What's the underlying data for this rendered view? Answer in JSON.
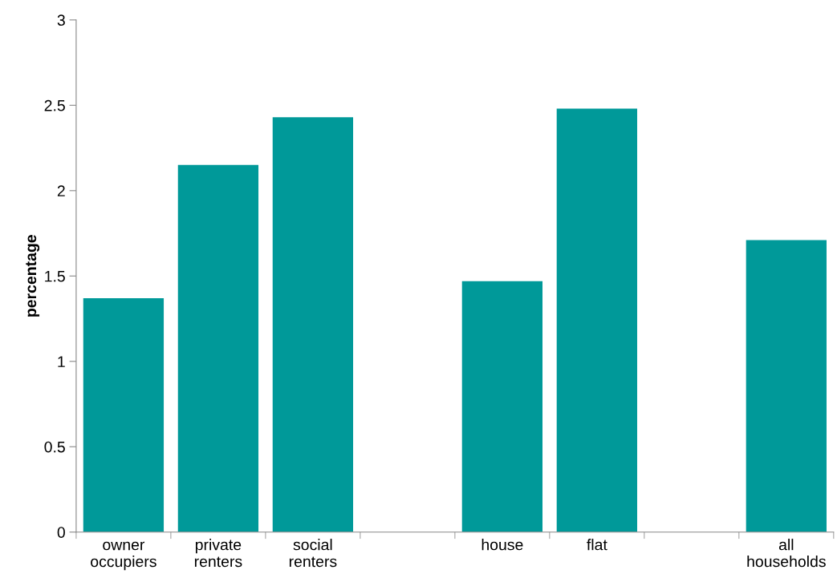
{
  "chart_data": {
    "type": "bar",
    "ylabel": "percentage",
    "categories": [
      "owner\noccupiers",
      "private\nrenters",
      "social\nrenters",
      null,
      "house",
      "flat",
      null,
      "all\nhouseholds"
    ],
    "values": [
      1.37,
      2.15,
      2.43,
      null,
      1.47,
      2.48,
      null,
      1.71
    ],
    "color": "#009999",
    "ylim": [
      0,
      3
    ],
    "yticks": [
      0,
      0.5,
      1,
      1.5,
      2,
      2.5,
      3
    ],
    "grid": false,
    "legend": false
  }
}
